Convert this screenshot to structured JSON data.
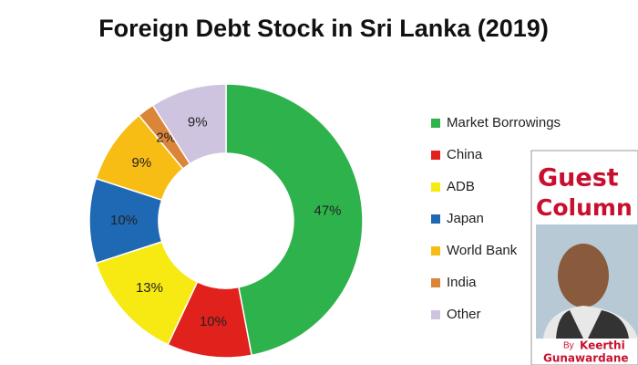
{
  "chart_data": {
    "type": "donut",
    "title": "Foreign  Debt Stock in Sri Lanka (2019)",
    "categories": [
      "Market Borrowings",
      "China",
      "ADB",
      "Japan",
      "World Bank",
      "India",
      "Other"
    ],
    "values": [
      47,
      10,
      13,
      10,
      9,
      2,
      9
    ],
    "value_labels": [
      "47%",
      "10%",
      "13%",
      "10%",
      "9%",
      "2%",
      "9%"
    ],
    "colors": [
      "#2eb24b",
      "#e1211c",
      "#f6ea12",
      "#1f68b3",
      "#f8bd14",
      "#da8538",
      "#cfc4e0"
    ],
    "legend": "right"
  },
  "overlay": {
    "heading_1": "Guest",
    "heading_2": "Column",
    "byline": "By",
    "author_first": "Keerthi",
    "author_last": "Gunawardane"
  }
}
